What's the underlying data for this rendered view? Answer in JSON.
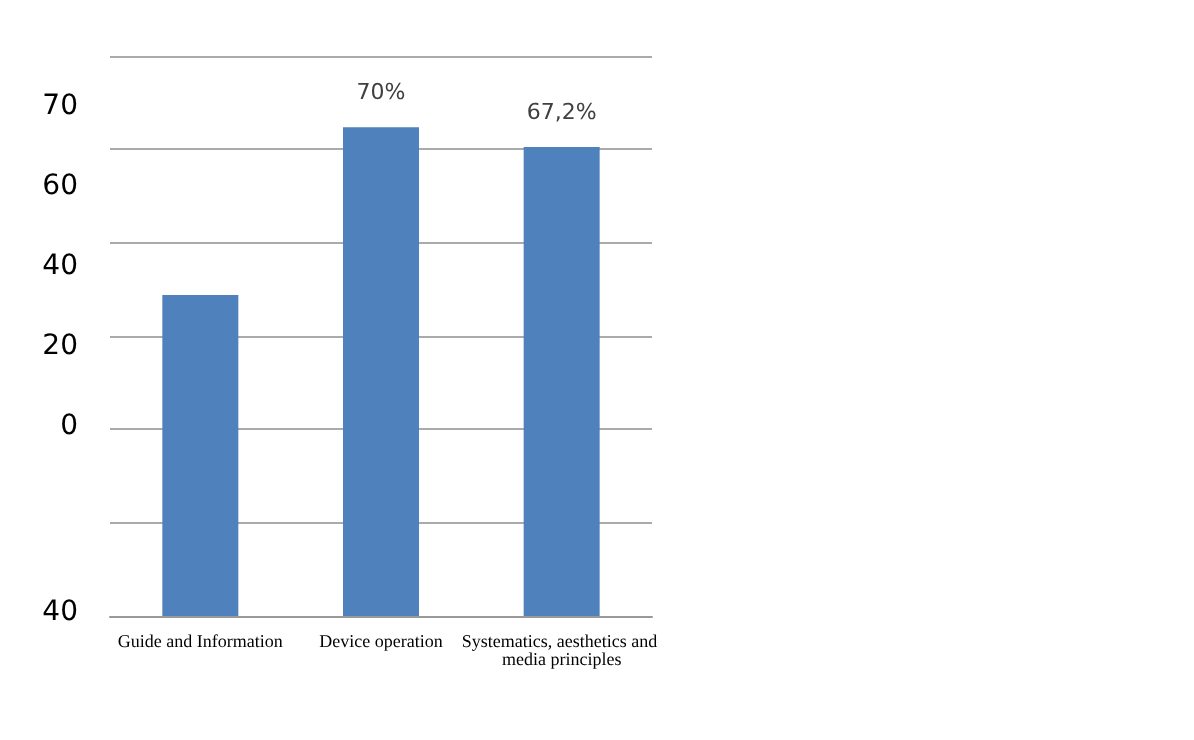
{
  "chart_data": {
    "type": "bar",
    "categories": [
      "Guide and Information",
      "Device operation",
      "Systematics, aesthetics and media principles"
    ],
    "values": [
      46,
      70,
      67.2
    ],
    "color": "#4f81bd",
    "value_labels": [
      null,
      "70%",
      "67,2%"
    ],
    "annotations": [
      "70",
      "60",
      "40",
      "20",
      "0",
      "40"
    ],
    "grid": true
  }
}
